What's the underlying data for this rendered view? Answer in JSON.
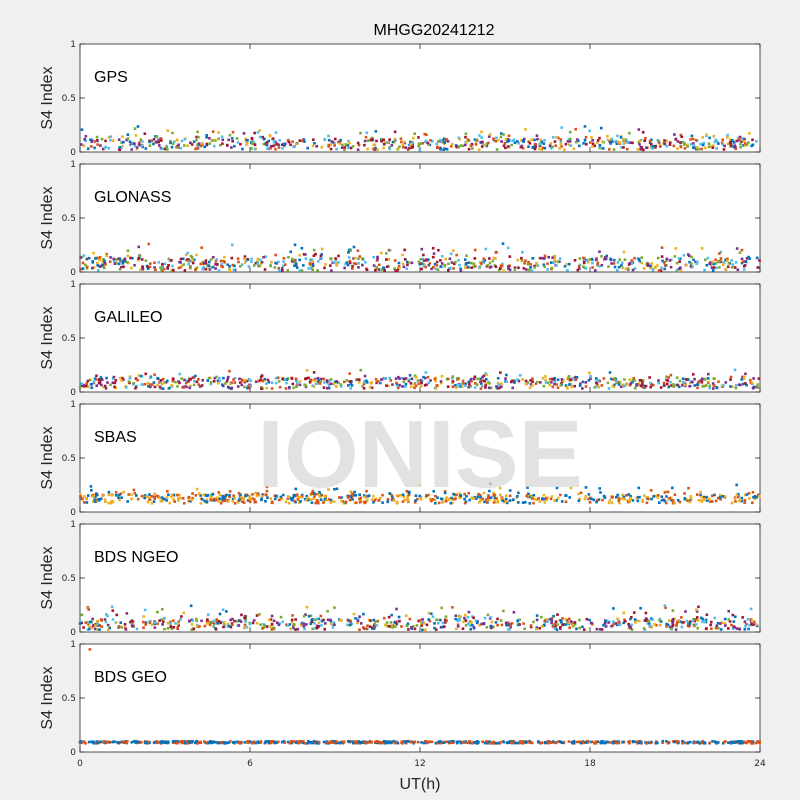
{
  "chart_data": {
    "type": "scatter",
    "title": "MHGG20241212",
    "xlabel": "UT(h)",
    "ylabel": "S4 Index",
    "xlim": [
      0,
      24
    ],
    "ylim": [
      0,
      1
    ],
    "xticks": [
      "0",
      "6",
      "12",
      "18",
      "24"
    ],
    "yticks": [
      "0",
      "0.5",
      "1"
    ],
    "watermark": "IONISE",
    "series_colors": [
      "#0072BD",
      "#D95319",
      "#EDB120",
      "#7E2F8E",
      "#77AC30",
      "#4DBEEE",
      "#A2142F"
    ],
    "panels": [
      {
        "label": "GPS",
        "base": 0.07,
        "spread": 0.05,
        "max_peak": 0.25,
        "colors": 7
      },
      {
        "label": "GLONASS",
        "base": 0.07,
        "spread": 0.06,
        "max_peak": 0.28,
        "colors": 7
      },
      {
        "label": "GALILEO",
        "base": 0.08,
        "spread": 0.05,
        "max_peak": 0.22,
        "colors": 7
      },
      {
        "label": "SBAS",
        "base": 0.12,
        "spread": 0.04,
        "max_peak": 0.27,
        "colors": 3
      },
      {
        "label": "BDS NGEO",
        "base": 0.07,
        "spread": 0.05,
        "max_peak": 0.26,
        "colors": 7
      },
      {
        "label": "BDS GEO",
        "base": 0.09,
        "spread": 0.01,
        "max_peak": 0.95,
        "colors": 2
      }
    ]
  }
}
